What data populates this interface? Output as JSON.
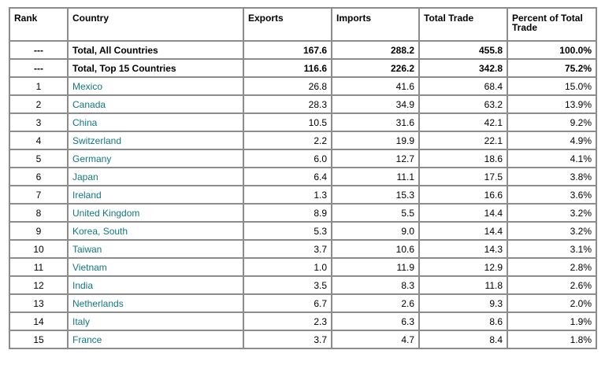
{
  "table": {
    "headers": {
      "rank": "Rank",
      "country": "Country",
      "exports": "Exports",
      "imports": "Imports",
      "total": "Total Trade",
      "percent": "Percent of Total Trade"
    },
    "totals": [
      {
        "rank": "---",
        "country": "Total, All Countries",
        "exports": "167.6",
        "imports": "288.2",
        "total": "455.8",
        "percent": "100.0%"
      },
      {
        "rank": "---",
        "country": "Total, Top 15 Countries",
        "exports": "116.6",
        "imports": "226.2",
        "total": "342.8",
        "percent": "75.2%"
      }
    ],
    "rows": [
      {
        "rank": "1",
        "country": "Mexico",
        "exports": "26.8",
        "imports": "41.6",
        "total": "68.4",
        "percent": "15.0%"
      },
      {
        "rank": "2",
        "country": "Canada",
        "exports": "28.3",
        "imports": "34.9",
        "total": "63.2",
        "percent": "13.9%"
      },
      {
        "rank": "3",
        "country": "China",
        "exports": "10.5",
        "imports": "31.6",
        "total": "42.1",
        "percent": "9.2%"
      },
      {
        "rank": "4",
        "country": "Switzerland",
        "exports": "2.2",
        "imports": "19.9",
        "total": "22.1",
        "percent": "4.9%"
      },
      {
        "rank": "5",
        "country": "Germany",
        "exports": "6.0",
        "imports": "12.7",
        "total": "18.6",
        "percent": "4.1%"
      },
      {
        "rank": "6",
        "country": "Japan",
        "exports": "6.4",
        "imports": "11.1",
        "total": "17.5",
        "percent": "3.8%"
      },
      {
        "rank": "7",
        "country": "Ireland",
        "exports": "1.3",
        "imports": "15.3",
        "total": "16.6",
        "percent": "3.6%"
      },
      {
        "rank": "8",
        "country": "United Kingdom",
        "exports": "8.9",
        "imports": "5.5",
        "total": "14.4",
        "percent": "3.2%"
      },
      {
        "rank": "9",
        "country": "Korea, South",
        "exports": "5.3",
        "imports": "9.0",
        "total": "14.4",
        "percent": "3.2%"
      },
      {
        "rank": "10",
        "country": "Taiwan",
        "exports": "3.7",
        "imports": "10.6",
        "total": "14.3",
        "percent": "3.1%"
      },
      {
        "rank": "11",
        "country": "Vietnam",
        "exports": "1.0",
        "imports": "11.9",
        "total": "12.9",
        "percent": "2.8%"
      },
      {
        "rank": "12",
        "country": "India",
        "exports": "3.5",
        "imports": "8.3",
        "total": "11.8",
        "percent": "2.6%"
      },
      {
        "rank": "13",
        "country": "Netherlands",
        "exports": "6.7",
        "imports": "2.6",
        "total": "9.3",
        "percent": "2.0%"
      },
      {
        "rank": "14",
        "country": "Italy",
        "exports": "2.3",
        "imports": "6.3",
        "total": "8.6",
        "percent": "1.9%"
      },
      {
        "rank": "15",
        "country": "France",
        "exports": "3.7",
        "imports": "4.7",
        "total": "8.4",
        "percent": "1.8%"
      }
    ]
  },
  "colors": {
    "link": "#11777f",
    "border": "#8c8c8c"
  }
}
